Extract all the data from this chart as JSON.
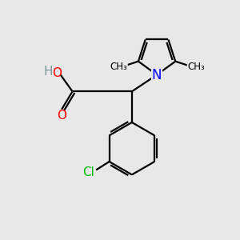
{
  "background_color": "#e8e8e8",
  "bond_color": "#000000",
  "bond_width": 1.6,
  "atom_colors": {
    "O": "#ff0000",
    "N": "#0000ff",
    "Cl": "#00bb00",
    "C": "#000000",
    "H": "#7a9a9a"
  },
  "font_size_atom": 11,
  "figure_size": [
    3.0,
    3.0
  ],
  "dpi": 100
}
